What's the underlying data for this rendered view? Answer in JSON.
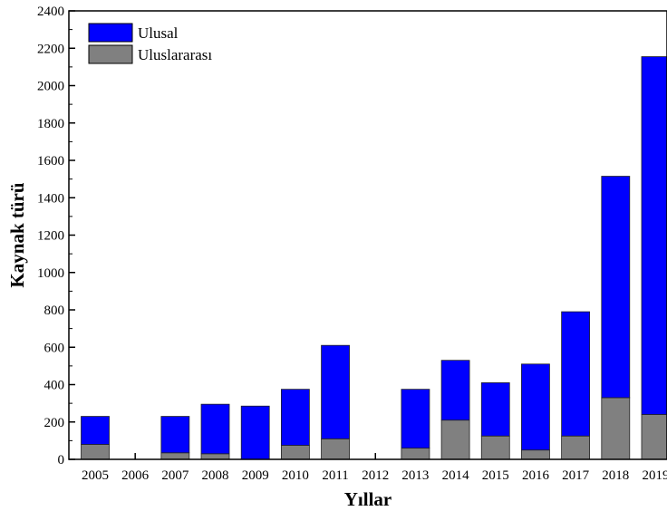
{
  "chart_data": {
    "type": "bar",
    "stacked": true,
    "categories": [
      "2005",
      "2006",
      "2007",
      "2008",
      "2009",
      "2010",
      "2011",
      "2012",
      "2013",
      "2014",
      "2015",
      "2016",
      "2017",
      "2018",
      "2019"
    ],
    "series": [
      {
        "name": "Uluslararası",
        "color": "#808080",
        "values": [
          80,
          0,
          35,
          30,
          0,
          75,
          110,
          0,
          60,
          210,
          125,
          50,
          125,
          330,
          240
        ]
      },
      {
        "name": "Ulusal",
        "color": "#0000FF",
        "values": [
          150,
          0,
          195,
          265,
          285,
          300,
          500,
          0,
          315,
          320,
          285,
          460,
          665,
          1185,
          1915
        ]
      }
    ],
    "totals": [
      230,
      0,
      230,
      295,
      285,
      375,
      610,
      0,
      375,
      530,
      410,
      510,
      790,
      1515,
      2155
    ],
    "xlabel": "Yıllar",
    "ylabel": "Kaynak türü",
    "ylim": [
      0,
      2400
    ],
    "yticks": [
      0,
      200,
      400,
      600,
      800,
      1000,
      1200,
      1400,
      1600,
      1800,
      2000,
      2200,
      2400
    ],
    "grid": false,
    "legend_position": "top-left",
    "legend": [
      "Ulusal",
      "Uluslararası"
    ]
  }
}
